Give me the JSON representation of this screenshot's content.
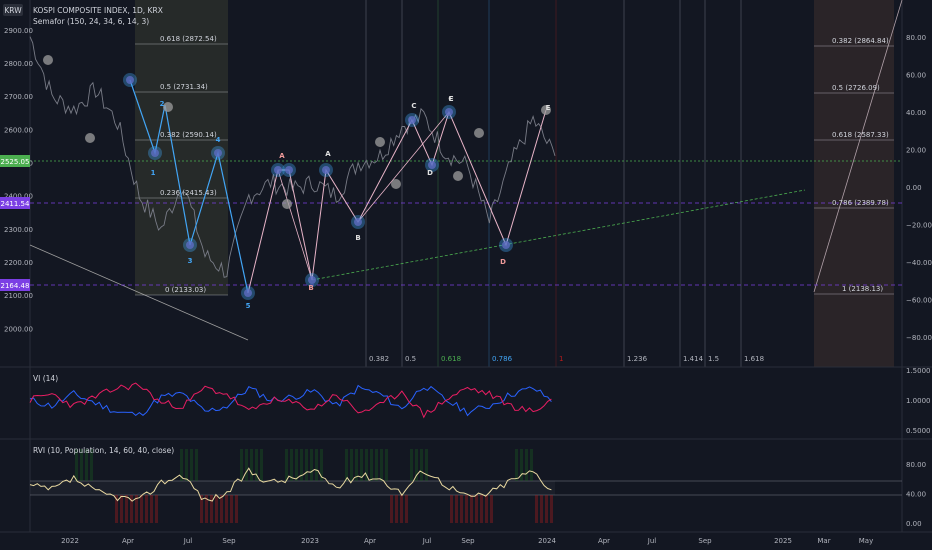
{
  "header": {
    "currency_badge": "KRW",
    "title": "KOSPI COMPOSITE INDEX, 1D, KRX",
    "indicator": "Semafor (150, 24, 34, 6, 14, 3)"
  },
  "price_tags": [
    {
      "text": "2525.05",
      "color": "#4caf50"
    },
    {
      "text": "2411.54",
      "color": "#7b3fe4"
    },
    {
      "text": "2164.48",
      "color": "#7b3fe4"
    }
  ],
  "left_axis_labels": [
    "2900.00",
    "2800.00",
    "2700.00",
    "2600.00",
    "2500.00",
    "2400.00",
    "2300.00",
    "2200.00",
    "2100.00",
    "2000.00"
  ],
  "right_axis_labels": [
    "80.00",
    "60.00",
    "40.00",
    "20.00",
    "0.00",
    "−20.00",
    "−40.00",
    "−60.00",
    "−80.00"
  ],
  "vi_axis_labels": [
    "1.5000",
    "1.0000",
    "0.5000"
  ],
  "rvi_axis_labels": [
    "80.00",
    "40.00",
    "0.00"
  ],
  "time_labels": [
    "2022",
    "Apr",
    "Jul",
    "Sep",
    "2023",
    "Apr",
    "Jul",
    "Sep",
    "2024",
    "Apr",
    "Jul",
    "Sep",
    "2025",
    "Mar",
    "May"
  ],
  "fib_retracement_left": [
    {
      "text": "0.618 (2872.54)"
    },
    {
      "text": "0.5 (2731.34)"
    },
    {
      "text": "0.382 (2590.14)"
    },
    {
      "text": "0.236 (2415.43)"
    },
    {
      "text": "0 (2133.03)"
    }
  ],
  "fib_retracement_right": [
    {
      "text": "0.382 (2864.84)"
    },
    {
      "text": "0.5 (2726.09)"
    },
    {
      "text": "0.618 (2587.33)"
    },
    {
      "text": "0.786 (2389.78)"
    },
    {
      "text": "1 (2138.13)"
    }
  ],
  "fib_time_labels": [
    {
      "text": "0.382",
      "color": "#b2b5be"
    },
    {
      "text": "0.5",
      "color": "#b2b5be"
    },
    {
      "text": "0.618",
      "color": "#4caf50"
    },
    {
      "text": "0.786",
      "color": "#42a5f5"
    },
    {
      "text": "1",
      "color": "#b71c1c"
    },
    {
      "text": "1.236",
      "color": "#b2b5be"
    },
    {
      "text": "1.414",
      "color": "#b2b5be"
    },
    {
      "text": "1.5",
      "color": "#b2b5be"
    },
    {
      "text": "1.618",
      "color": "#b2b5be"
    }
  ],
  "wave_labels": [
    {
      "text": "1",
      "color": "#42a5f5"
    },
    {
      "text": "2",
      "color": "#42a5f5"
    },
    {
      "text": "3",
      "color": "#42a5f5"
    },
    {
      "text": "4",
      "color": "#42a5f5"
    },
    {
      "text": "5",
      "color": "#42a5f5"
    },
    {
      "text": "A",
      "color": "#ef9a9a"
    },
    {
      "text": "B",
      "color": "#ef9a9a"
    },
    {
      "text": "A",
      "color": "#e0e0e0"
    },
    {
      "text": "B",
      "color": "#e0e0e0"
    },
    {
      "text": "C",
      "color": "#e0e0e0"
    },
    {
      "text": "D",
      "color": "#e0e0e0"
    },
    {
      "text": "E",
      "color": "#e0e0e0"
    },
    {
      "text": "C",
      "color": "#e0e0e0"
    },
    {
      "text": "D",
      "color": "#ef9a9a"
    },
    {
      "text": "E",
      "color": "#e0e0e0"
    }
  ],
  "vi_panel": {
    "title": "VI (14)",
    "plus_color": "#2962ff",
    "minus_color": "#e91e63"
  },
  "rvi_panel": {
    "title": "RVI (10, Population, 14, 60, 40, close)"
  },
  "colors": {
    "background": "#131722",
    "price": "#787b86",
    "impulse": "#42a5f5",
    "corrective": "#e8b4c8",
    "support_green": "#4caf50",
    "level_purple": "#7b3fe4"
  },
  "chart_data": [
    {
      "type": "line",
      "title": "KOSPI COMPOSITE INDEX, 1D, KRX",
      "x": [
        "2022-01",
        "2022-02",
        "2022-03",
        "2022-04",
        "2022-05",
        "2022-06",
        "2022-07",
        "2022-08",
        "2022-09",
        "2022-10",
        "2022-11",
        "2022-12",
        "2023-01",
        "2023-02",
        "2023-03",
        "2023-04",
        "2023-05",
        "2023-06",
        "2023-07",
        "2023-08",
        "2023-09",
        "2023-10",
        "2023-11",
        "2023-12",
        "2024-01"
      ],
      "series": [
        {
          "values": [
            2880,
            2700,
            2660,
            2720,
            2620,
            2400,
            2300,
            2440,
            2220,
            2170,
            2400,
            2440,
            2420,
            2440,
            2400,
            2500,
            2520,
            2610,
            2640,
            2530,
            2490,
            2320,
            2500,
            2630,
            2520
          ]
        }
      ],
      "ylim": [
        1950,
        2960
      ],
      "grid": false
    },
    {
      "type": "line",
      "title": "VI (14)",
      "series": [
        {
          "name": "VI+",
          "values": [
            1.0,
            0.9,
            1.1,
            0.95,
            0.8,
            0.75,
            1.05,
            1.1,
            0.8,
            0.9,
            1.2,
            1.0,
            1.05,
            1.15,
            0.9,
            1.2,
            1.1,
            0.85,
            1.25,
            1.0,
            0.8,
            0.9,
            1.1,
            1.2,
            0.95
          ]
        },
        {
          "name": "VI−",
          "values": [
            1.0,
            1.1,
            0.9,
            1.05,
            1.2,
            1.25,
            0.95,
            0.9,
            1.2,
            1.1,
            0.8,
            1.0,
            0.95,
            0.85,
            1.1,
            0.8,
            0.9,
            1.15,
            0.75,
            1.0,
            1.2,
            1.1,
            0.9,
            0.8,
            1.05
          ]
        }
      ],
      "ylim": [
        0.5,
        1.5
      ]
    },
    {
      "type": "line",
      "title": "RVI (10, Population, 14, 60, 40, close)",
      "series": [
        {
          "values": [
            50,
            45,
            60,
            42,
            35,
            30,
            55,
            65,
            30,
            40,
            70,
            55,
            60,
            70,
            48,
            65,
            60,
            40,
            72,
            52,
            35,
            40,
            58,
            70,
            40
          ]
        }
      ],
      "ylim": [
        0,
        100
      ]
    }
  ]
}
